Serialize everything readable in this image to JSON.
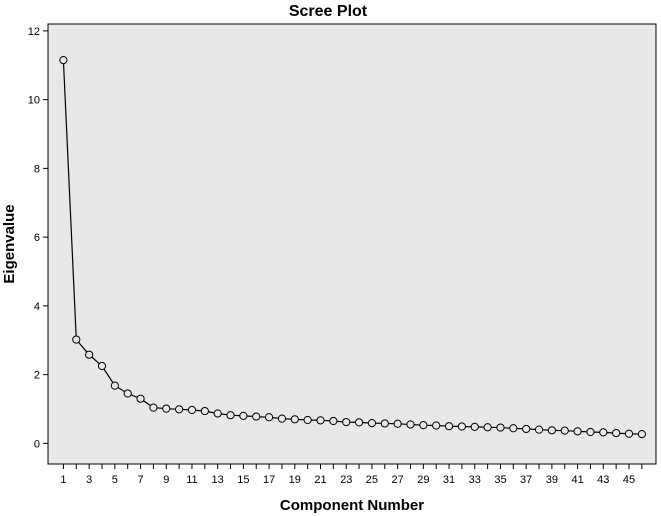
{
  "chart_data": {
    "type": "line",
    "title": "Scree Plot",
    "xlabel": "Component Number",
    "ylabel": "Eigenvalue",
    "x": [
      1,
      2,
      3,
      4,
      5,
      6,
      7,
      8,
      9,
      10,
      11,
      12,
      13,
      14,
      15,
      16,
      17,
      18,
      19,
      20,
      21,
      22,
      23,
      24,
      25,
      26,
      27,
      28,
      29,
      30,
      31,
      32,
      33,
      34,
      35,
      36,
      37,
      38,
      39,
      40,
      41,
      42,
      43,
      44,
      45,
      46
    ],
    "values": [
      11.15,
      3.02,
      2.58,
      2.25,
      1.68,
      1.45,
      1.3,
      1.04,
      1.01,
      0.99,
      0.97,
      0.94,
      0.87,
      0.82,
      0.8,
      0.78,
      0.76,
      0.72,
      0.7,
      0.68,
      0.67,
      0.65,
      0.62,
      0.61,
      0.59,
      0.58,
      0.57,
      0.55,
      0.53,
      0.52,
      0.5,
      0.49,
      0.48,
      0.47,
      0.46,
      0.44,
      0.42,
      0.4,
      0.38,
      0.37,
      0.35,
      0.33,
      0.32,
      0.3,
      0.28,
      0.27
    ],
    "x_tick_labels": [
      "1",
      "3",
      "5",
      "7",
      "9",
      "11",
      "13",
      "15",
      "17",
      "19",
      "21",
      "23",
      "25",
      "27",
      "29",
      "31",
      "33",
      "35",
      "37",
      "39",
      "41",
      "43",
      "45"
    ],
    "y_tick_labels": [
      "0",
      "2",
      "4",
      "6",
      "8",
      "10",
      "12"
    ],
    "ylim": [
      -0.6,
      12.2
    ],
    "xlim": [
      -0.2,
      47.1
    ],
    "grid": false,
    "marker": "open-circle",
    "colors": {
      "plot_background": "#e8e8e8",
      "line": "#000000",
      "marker_fill": "#e8e8e8"
    }
  }
}
